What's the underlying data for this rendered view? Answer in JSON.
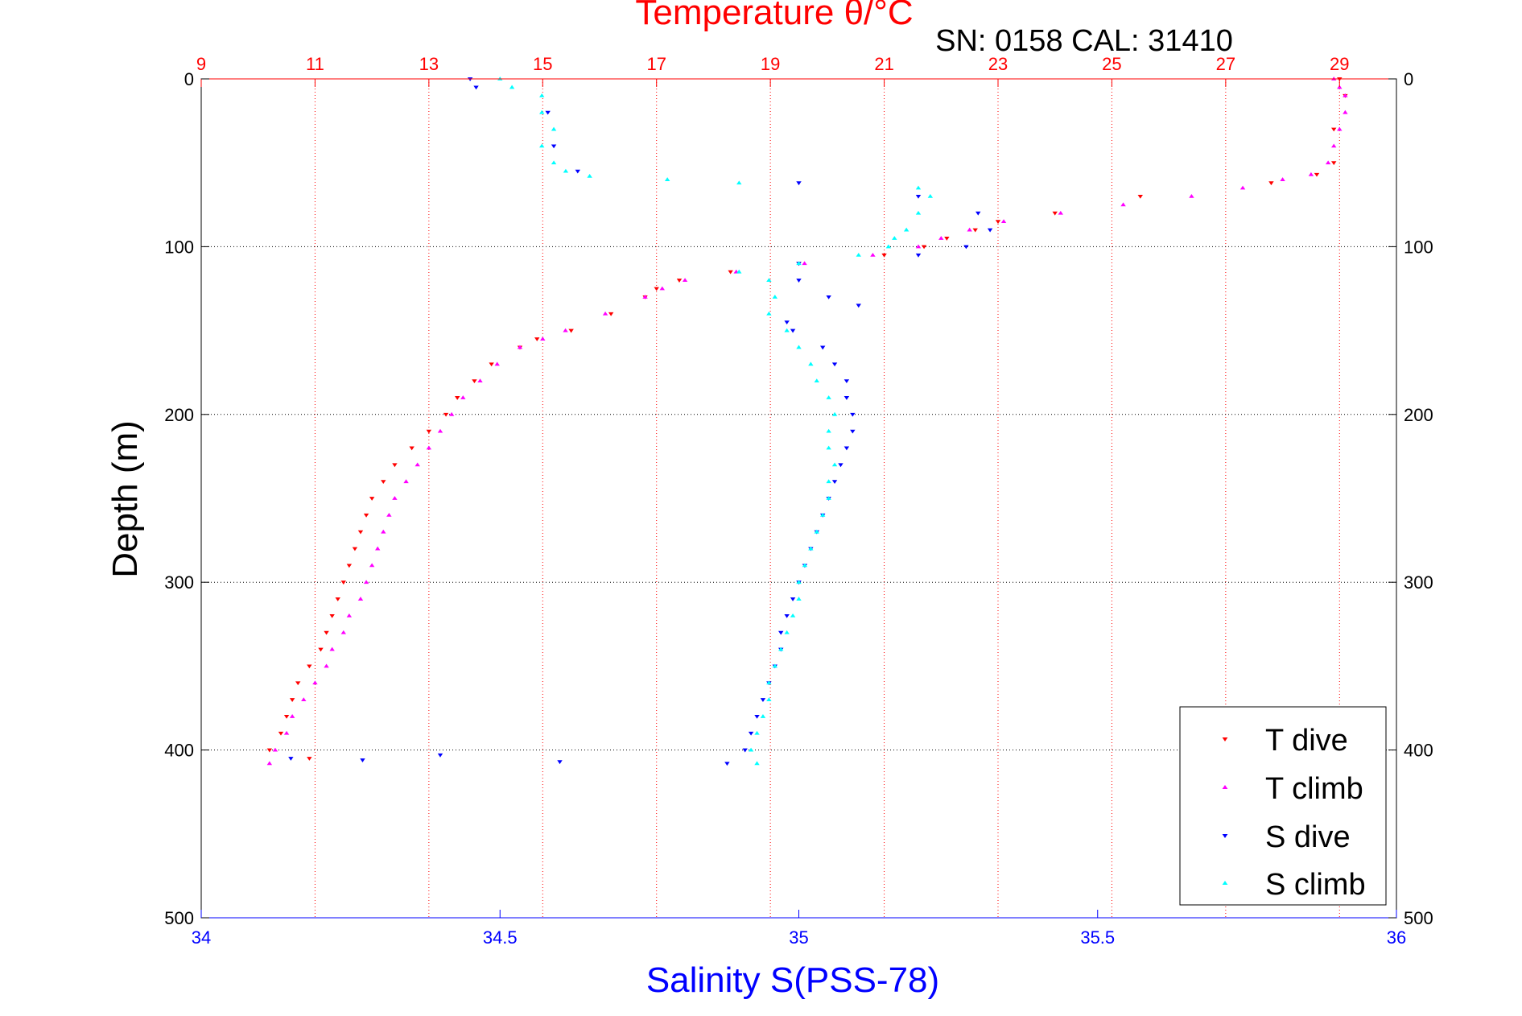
{
  "chart_data": {
    "type": "scatter",
    "top_axis_title": "Temperature θ/°C",
    "bottom_axis_title": "Salinity S(PSS-78)",
    "y_axis_title": "Depth (m)",
    "annotation": "SN: 0158  CAL: 31410",
    "temperature_axis": {
      "range": [
        9,
        30
      ],
      "ticks": [
        "9",
        "11",
        "13",
        "15",
        "17",
        "19",
        "21",
        "23",
        "25",
        "27",
        "29"
      ],
      "grid": true
    },
    "salinity_axis": {
      "range": [
        34,
        36
      ],
      "ticks": [
        "34",
        "34.5",
        "35",
        "35.5",
        "36"
      ],
      "grid": false
    },
    "depth_axis": {
      "range": [
        0,
        500
      ],
      "reversed": true,
      "ticks": [
        "0",
        "100",
        "200",
        "300",
        "400",
        "500"
      ],
      "grid": true
    },
    "legend": {
      "placement": "bottom-right",
      "entries": [
        "T dive",
        "T climb",
        "S dive",
        "S climb"
      ]
    },
    "colors": {
      "T dive": "#ff0000",
      "T climb": "#ff00ff",
      "S dive": "#0000ff",
      "S climb": "#00ffff"
    },
    "series": [
      {
        "name": "T dive",
        "axis": "temperature",
        "marker": "triangle-down",
        "depth": [
          0,
          10,
          30,
          50,
          57,
          62,
          70,
          80,
          85,
          90,
          95,
          100,
          105,
          110,
          115,
          120,
          125,
          130,
          140,
          150,
          155,
          160,
          170,
          180,
          190,
          200,
          210,
          220,
          230,
          240,
          250,
          260,
          270,
          280,
          290,
          300,
          310,
          320,
          330,
          340,
          350,
          360,
          370,
          380,
          390,
          400,
          405
        ],
        "values": [
          29.0,
          29.1,
          28.9,
          28.9,
          28.6,
          27.8,
          25.5,
          24.0,
          23.0,
          22.6,
          22.1,
          21.7,
          21.0,
          19.5,
          18.3,
          17.4,
          17.0,
          16.8,
          16.2,
          15.5,
          14.9,
          14.6,
          14.1,
          13.8,
          13.5,
          13.3,
          13.0,
          12.7,
          12.4,
          12.2,
          12.0,
          11.9,
          11.8,
          11.7,
          11.6,
          11.5,
          11.4,
          11.3,
          11.2,
          11.1,
          10.9,
          10.7,
          10.6,
          10.5,
          10.4,
          10.2,
          10.9
        ]
      },
      {
        "name": "T climb",
        "axis": "temperature",
        "marker": "triangle-up",
        "depth": [
          408,
          400,
          390,
          380,
          370,
          360,
          350,
          340,
          330,
          320,
          310,
          300,
          290,
          280,
          270,
          260,
          250,
          240,
          230,
          220,
          210,
          200,
          190,
          180,
          170,
          160,
          155,
          150,
          140,
          130,
          125,
          120,
          115,
          110,
          105,
          100,
          95,
          90,
          85,
          80,
          75,
          70,
          65,
          60,
          57,
          50,
          40,
          30,
          20,
          10,
          5,
          0
        ],
        "values": [
          10.2,
          10.3,
          10.5,
          10.6,
          10.8,
          11.0,
          11.2,
          11.3,
          11.5,
          11.6,
          11.8,
          11.9,
          12.0,
          12.1,
          12.2,
          12.3,
          12.4,
          12.6,
          12.8,
          13.0,
          13.2,
          13.4,
          13.6,
          13.9,
          14.2,
          14.6,
          15.0,
          15.4,
          16.1,
          16.8,
          17.1,
          17.5,
          18.4,
          19.6,
          20.8,
          21.6,
          22.0,
          22.5,
          23.1,
          24.1,
          25.2,
          26.4,
          27.3,
          28.0,
          28.5,
          28.8,
          28.9,
          29.0,
          29.1,
          29.1,
          29.0,
          28.9
        ]
      },
      {
        "name": "S dive",
        "axis": "salinity",
        "marker": "triangle-down",
        "depth": [
          0,
          5,
          20,
          40,
          55,
          62,
          70,
          80,
          90,
          100,
          105,
          110,
          120,
          130,
          135,
          145,
          150,
          160,
          170,
          180,
          190,
          200,
          210,
          220,
          230,
          240,
          250,
          260,
          270,
          280,
          290,
          300,
          310,
          320,
          330,
          340,
          350,
          360,
          370,
          380,
          390,
          400,
          403,
          405,
          406,
          407,
          408
        ],
        "values": [
          34.45,
          34.46,
          34.58,
          34.59,
          34.63,
          35.0,
          35.2,
          35.3,
          35.32,
          35.28,
          35.2,
          35.0,
          35.0,
          35.05,
          35.1,
          34.98,
          34.99,
          35.04,
          35.06,
          35.08,
          35.08,
          35.09,
          35.09,
          35.08,
          35.07,
          35.06,
          35.05,
          35.04,
          35.03,
          35.02,
          35.01,
          35.0,
          34.99,
          34.98,
          34.97,
          34.97,
          34.96,
          34.95,
          34.94,
          34.93,
          34.92,
          34.91,
          34.4,
          34.15,
          34.27,
          34.6,
          34.88
        ]
      },
      {
        "name": "S climb",
        "axis": "salinity",
        "marker": "triangle-up",
        "depth": [
          408,
          400,
          390,
          380,
          370,
          360,
          350,
          340,
          330,
          320,
          310,
          300,
          290,
          280,
          270,
          260,
          250,
          240,
          230,
          220,
          210,
          200,
          190,
          180,
          170,
          160,
          150,
          140,
          130,
          120,
          115,
          110,
          105,
          100,
          95,
          90,
          80,
          70,
          65,
          62,
          60,
          58,
          55,
          50,
          40,
          30,
          20,
          10,
          5,
          0
        ],
        "values": [
          34.93,
          34.92,
          34.93,
          34.94,
          34.95,
          34.95,
          34.96,
          34.97,
          34.98,
          34.99,
          35.0,
          35.0,
          35.01,
          35.02,
          35.03,
          35.04,
          35.05,
          35.05,
          35.06,
          35.05,
          35.05,
          35.06,
          35.05,
          35.03,
          35.02,
          35.0,
          34.98,
          34.95,
          34.96,
          34.95,
          34.9,
          35.0,
          35.1,
          35.15,
          35.16,
          35.18,
          35.2,
          35.22,
          35.2,
          34.9,
          34.78,
          34.65,
          34.61,
          34.59,
          34.57,
          34.59,
          34.57,
          34.57,
          34.52,
          34.5
        ]
      }
    ]
  }
}
